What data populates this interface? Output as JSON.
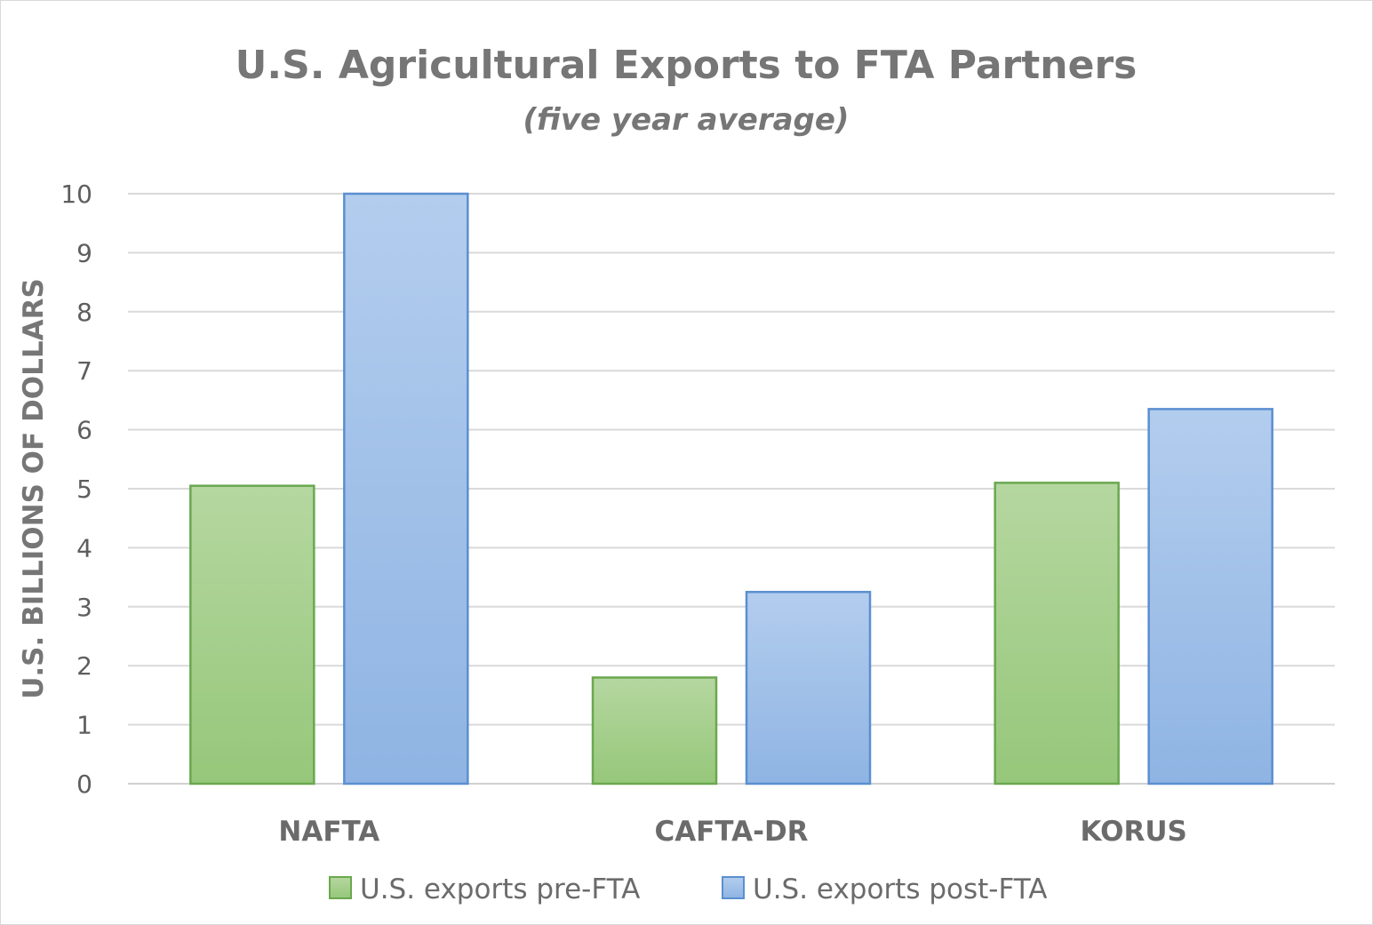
{
  "chart_data": {
    "type": "bar",
    "title": "U.S. Agricultural Exports to FTA Partners",
    "subtitle": "(five year average)",
    "xlabel": "",
    "ylabel": "U.S. BILLIONS OF DOLLARS",
    "ylim": [
      0,
      10
    ],
    "yticks": [
      "0",
      "1",
      "2",
      "3",
      "4",
      "5",
      "6",
      "7",
      "8",
      "9",
      "10"
    ],
    "grid": true,
    "legend_position": "bottom",
    "categories": [
      "NAFTA",
      "CAFTA-DR",
      "KORUS"
    ],
    "series": [
      {
        "name": "U.S. exports pre-FTA",
        "values": [
          5.05,
          1.8,
          5.1
        ],
        "color": "#9dc883",
        "border": "#6aa84f"
      },
      {
        "name": "U.S. exports post-FTA",
        "values": [
          10.0,
          3.25,
          6.35
        ],
        "color": "#9fbfe6",
        "border": "#5b8fd0"
      }
    ]
  }
}
